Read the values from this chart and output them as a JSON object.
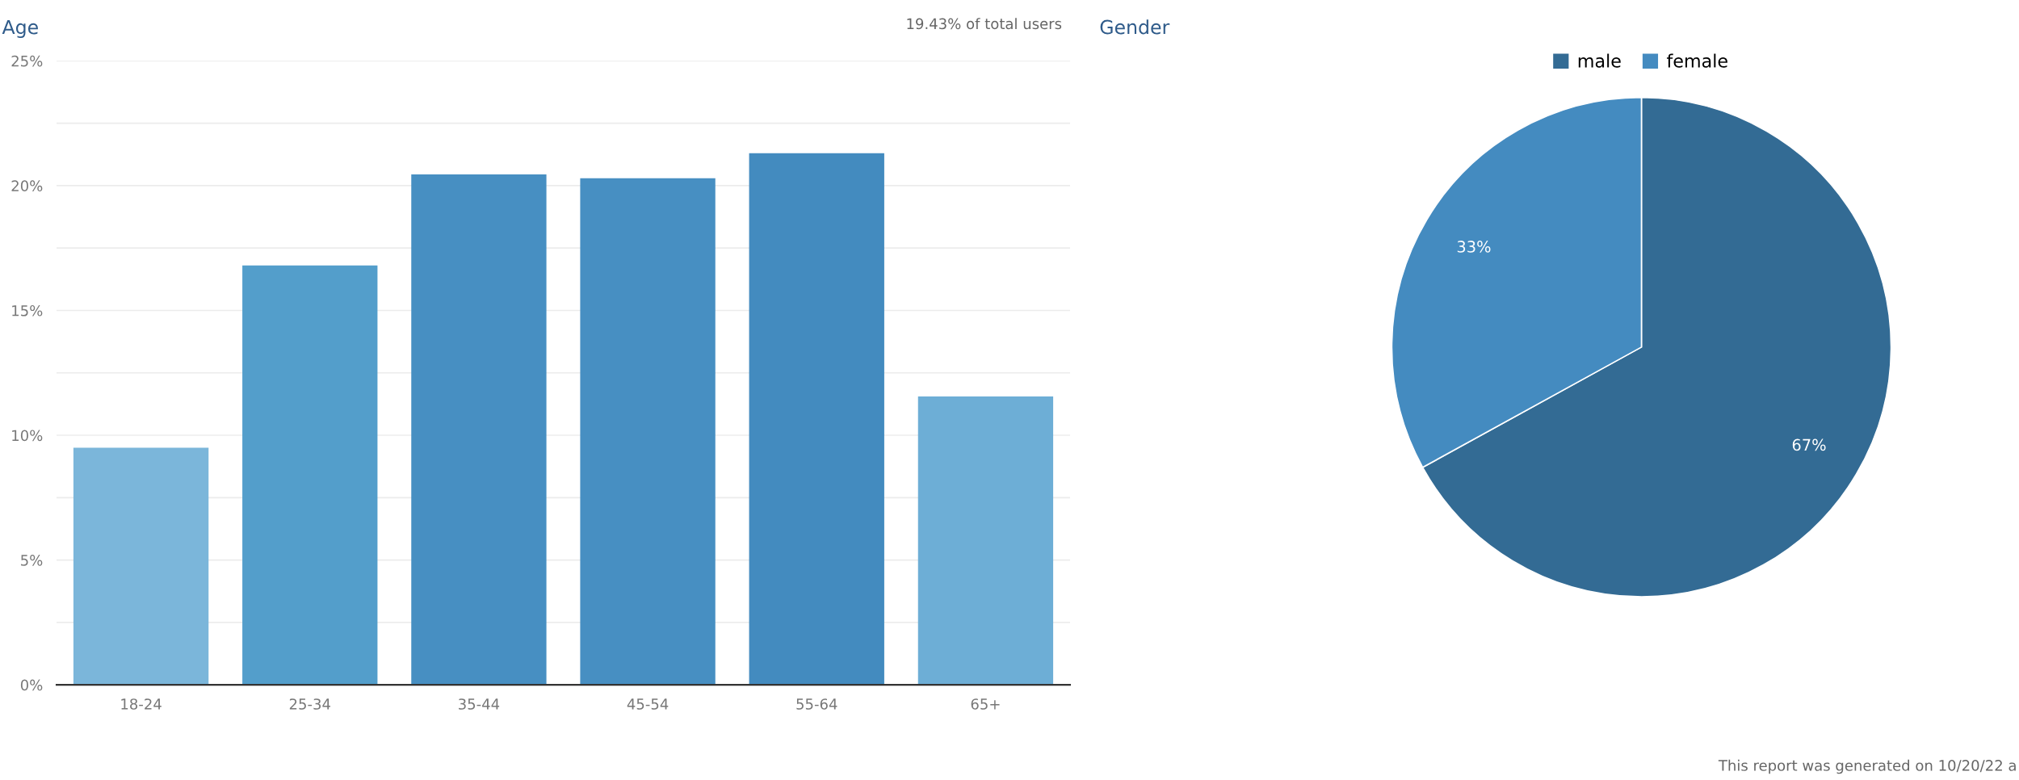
{
  "chart_data": [
    {
      "type": "bar",
      "title": "Age",
      "annotations": [
        "19.43% of total users"
      ],
      "categories": [
        "18-24",
        "25-34",
        "35-44",
        "45-54",
        "55-64",
        "65+"
      ],
      "values": [
        9.5,
        16.8,
        20.45,
        20.3,
        21.3,
        11.55
      ],
      "colors": [
        "#7bb6da",
        "#539ecb",
        "#478fc2",
        "#478fc2",
        "#438bbf",
        "#6daed6"
      ],
      "ylim": [
        0,
        25
      ],
      "yticks": [
        {
          "value": 0,
          "label": "0%"
        },
        {
          "value": 2.5,
          "label": null
        },
        {
          "value": 5,
          "label": "5%"
        },
        {
          "value": 7.5,
          "label": null
        },
        {
          "value": 10,
          "label": "10%"
        },
        {
          "value": 12.5,
          "label": null
        },
        {
          "value": 15,
          "label": "15%"
        },
        {
          "value": 17.5,
          "label": null
        },
        {
          "value": 20,
          "label": "20%"
        },
        {
          "value": 22.5,
          "label": null
        },
        {
          "value": 25,
          "label": "25%"
        }
      ],
      "grid": "y"
    },
    {
      "type": "pie",
      "title": "Gender",
      "annotations": [
        "This report was generated on 10/20/22 a"
      ],
      "categories": [
        "male",
        "female"
      ],
      "values": [
        67,
        33
      ],
      "colors": [
        "#336b94",
        "#448bc0"
      ],
      "value_labels": [
        "67%",
        "33%"
      ],
      "legend": "top"
    }
  ]
}
